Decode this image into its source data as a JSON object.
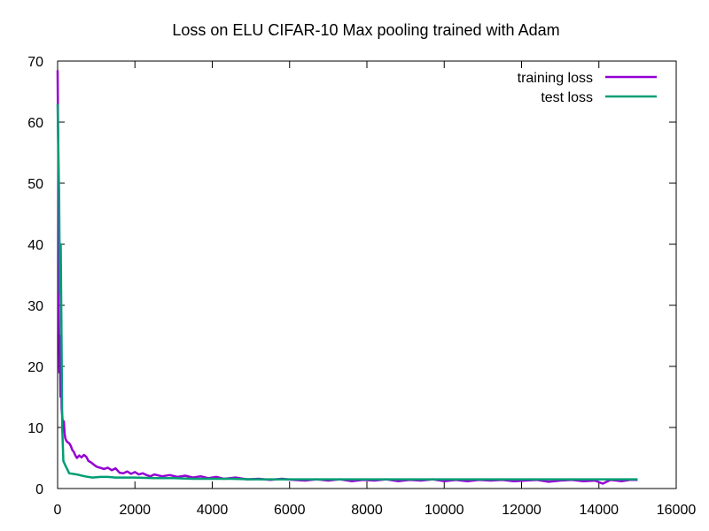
{
  "chart_data": {
    "type": "line",
    "title": "Loss on ELU CIFAR-10 Max pooling trained with Adam",
    "xlabel": "",
    "ylabel": "",
    "xlim": [
      0,
      16000
    ],
    "ylim": [
      0,
      70
    ],
    "x_ticks": [
      0,
      2000,
      4000,
      6000,
      8000,
      10000,
      12000,
      14000,
      16000
    ],
    "y_ticks": [
      0,
      10,
      20,
      30,
      40,
      50,
      60,
      70
    ],
    "grid": false,
    "legend_position": "top-right",
    "series": [
      {
        "name": "training loss",
        "color": "#9400d3",
        "points": [
          [
            0,
            68.5
          ],
          [
            15,
            55
          ],
          [
            30,
            30
          ],
          [
            45,
            19
          ],
          [
            60,
            25
          ],
          [
            75,
            15
          ],
          [
            90,
            20
          ],
          [
            105,
            13
          ],
          [
            120,
            12
          ],
          [
            140,
            10
          ],
          [
            160,
            11
          ],
          [
            180,
            9
          ],
          [
            200,
            8.2
          ],
          [
            230,
            7.8
          ],
          [
            260,
            7.6
          ],
          [
            300,
            7.4
          ],
          [
            340,
            7.0
          ],
          [
            380,
            6.3
          ],
          [
            420,
            6.0
          ],
          [
            460,
            5.4
          ],
          [
            500,
            5.0
          ],
          [
            560,
            5.4
          ],
          [
            620,
            5.1
          ],
          [
            680,
            5.5
          ],
          [
            740,
            5.2
          ],
          [
            800,
            4.5
          ],
          [
            860,
            4.3
          ],
          [
            920,
            4.0
          ],
          [
            980,
            3.7
          ],
          [
            1040,
            3.5
          ],
          [
            1100,
            3.4
          ],
          [
            1200,
            3.2
          ],
          [
            1300,
            3.4
          ],
          [
            1400,
            3.0
          ],
          [
            1500,
            3.3
          ],
          [
            1600,
            2.6
          ],
          [
            1700,
            2.5
          ],
          [
            1800,
            2.8
          ],
          [
            1900,
            2.4
          ],
          [
            2000,
            2.7
          ],
          [
            2100,
            2.3
          ],
          [
            2200,
            2.5
          ],
          [
            2300,
            2.2
          ],
          [
            2400,
            2.0
          ],
          [
            2500,
            2.3
          ],
          [
            2700,
            2.0
          ],
          [
            2900,
            2.2
          ],
          [
            3100,
            1.9
          ],
          [
            3300,
            2.1
          ],
          [
            3500,
            1.8
          ],
          [
            3700,
            2.0
          ],
          [
            3900,
            1.7
          ],
          [
            4100,
            1.9
          ],
          [
            4300,
            1.6
          ],
          [
            4600,
            1.8
          ],
          [
            4900,
            1.5
          ],
          [
            5200,
            1.6
          ],
          [
            5500,
            1.4
          ],
          [
            5800,
            1.6
          ],
          [
            6100,
            1.4
          ],
          [
            6400,
            1.3
          ],
          [
            6700,
            1.5
          ],
          [
            7000,
            1.3
          ],
          [
            7300,
            1.5
          ],
          [
            7600,
            1.2
          ],
          [
            7900,
            1.4
          ],
          [
            8200,
            1.3
          ],
          [
            8500,
            1.5
          ],
          [
            8800,
            1.2
          ],
          [
            9100,
            1.4
          ],
          [
            9400,
            1.3
          ],
          [
            9700,
            1.5
          ],
          [
            10000,
            1.2
          ],
          [
            10300,
            1.4
          ],
          [
            10600,
            1.2
          ],
          [
            10900,
            1.4
          ],
          [
            11200,
            1.3
          ],
          [
            11500,
            1.4
          ],
          [
            11800,
            1.2
          ],
          [
            12100,
            1.3
          ],
          [
            12400,
            1.4
          ],
          [
            12700,
            1.1
          ],
          [
            13000,
            1.3
          ],
          [
            13300,
            1.4
          ],
          [
            13600,
            1.2
          ],
          [
            13900,
            1.3
          ],
          [
            14100,
            0.8
          ],
          [
            14300,
            1.4
          ],
          [
            14600,
            1.2
          ],
          [
            14800,
            1.4
          ],
          [
            15000,
            1.4
          ]
        ]
      },
      {
        "name": "test loss",
        "color": "#009e73",
        "points": [
          [
            0,
            63
          ],
          [
            20,
            55
          ],
          [
            40,
            48
          ],
          [
            60,
            32
          ],
          [
            80,
            40
          ],
          [
            100,
            25
          ],
          [
            120,
            10
          ],
          [
            150,
            4.5
          ],
          [
            200,
            3.8
          ],
          [
            300,
            2.5
          ],
          [
            500,
            2.3
          ],
          [
            700,
            2.0
          ],
          [
            900,
            1.8
          ],
          [
            1100,
            1.9
          ],
          [
            1300,
            1.9
          ],
          [
            1500,
            1.8
          ],
          [
            1700,
            1.8
          ],
          [
            2000,
            1.8
          ],
          [
            2500,
            1.7
          ],
          [
            3000,
            1.7
          ],
          [
            3500,
            1.6
          ],
          [
            4000,
            1.6
          ],
          [
            4500,
            1.6
          ],
          [
            5000,
            1.5
          ],
          [
            6000,
            1.5
          ],
          [
            7000,
            1.5
          ],
          [
            8000,
            1.5
          ],
          [
            9000,
            1.5
          ],
          [
            10000,
            1.5
          ],
          [
            11000,
            1.5
          ],
          [
            12000,
            1.5
          ],
          [
            13000,
            1.5
          ],
          [
            14000,
            1.5
          ],
          [
            15000,
            1.5
          ]
        ]
      }
    ]
  }
}
